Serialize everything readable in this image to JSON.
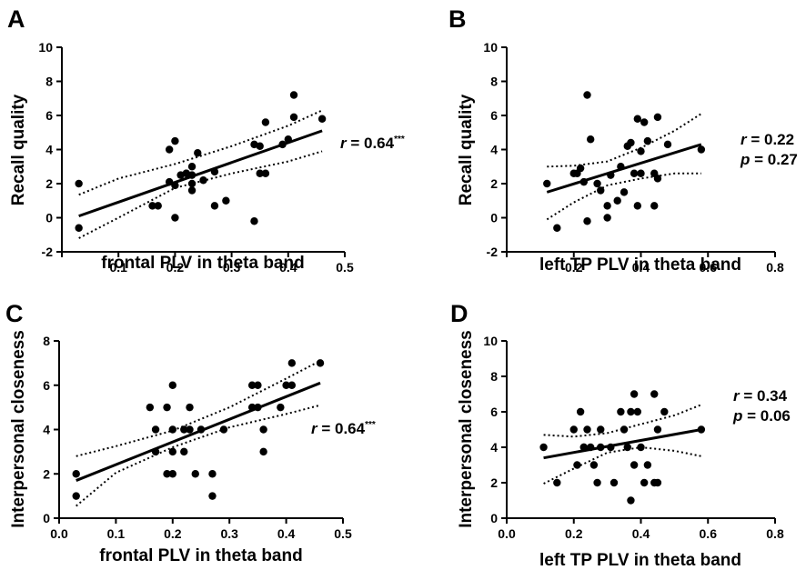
{
  "chart_data": [
    {
      "type": "scatter",
      "panel": "A",
      "xlabel": "frontal PLV in theta band",
      "ylabel": "Recall quality",
      "xlim": [
        0,
        0.5
      ],
      "ylim": [
        -2,
        10
      ],
      "xticks": [
        "",
        "0.1",
        "0.2",
        "0.3",
        "0.4",
        "0.5"
      ],
      "yticks": [
        "-2",
        "0",
        "2",
        "4",
        "6",
        "8",
        "10"
      ],
      "stat_r_label": "r",
      "stat_r_value": " = 0.64",
      "stat_sig": "***",
      "stat_p_label": "",
      "stat_p_value": "",
      "x": [
        0.03,
        0.03,
        0.16,
        0.17,
        0.19,
        0.19,
        0.2,
        0.2,
        0.2,
        0.21,
        0.22,
        0.22,
        0.23,
        0.23,
        0.23,
        0.23,
        0.24,
        0.25,
        0.27,
        0.27,
        0.29,
        0.34,
        0.34,
        0.35,
        0.35,
        0.36,
        0.36,
        0.39,
        0.4,
        0.41,
        0.41,
        0.46
      ],
      "y": [
        2.0,
        -0.6,
        0.7,
        0.7,
        2.1,
        4.0,
        0.0,
        1.9,
        4.5,
        2.5,
        2.6,
        2.6,
        2.0,
        2.5,
        3.0,
        1.6,
        3.8,
        2.2,
        2.7,
        0.7,
        1.0,
        -0.2,
        4.3,
        4.2,
        2.6,
        5.6,
        2.6,
        4.3,
        4.6,
        5.9,
        7.2,
        5.8
      ],
      "fit": {
        "x0": 0.03,
        "y0": 0.1,
        "x1": 0.46,
        "y1": 5.1
      },
      "ci_upper": [
        [
          0.03,
          1.35
        ],
        [
          0.1,
          2.3
        ],
        [
          0.2,
          3.15
        ],
        [
          0.3,
          4.2
        ],
        [
          0.4,
          5.4
        ],
        [
          0.46,
          6.3
        ]
      ],
      "ci_lower": [
        [
          0.03,
          -1.2
        ],
        [
          0.1,
          0.0
        ],
        [
          0.2,
          1.75
        ],
        [
          0.3,
          2.6
        ],
        [
          0.4,
          3.3
        ],
        [
          0.46,
          3.9
        ]
      ]
    },
    {
      "type": "scatter",
      "panel": "B",
      "xlabel": "left TP PLV in theta band",
      "ylabel": "Recall quality",
      "xlim": [
        0,
        0.8
      ],
      "ylim": [
        -2,
        10
      ],
      "xticks": [
        "",
        "0.2",
        "0.4",
        "0.6",
        "0.8"
      ],
      "yticks": [
        "-2",
        "0",
        "2",
        "4",
        "6",
        "8",
        "10"
      ],
      "stat_r_label": "r",
      "stat_r_value": " = 0.22",
      "stat_sig": "",
      "stat_p_label": "p",
      "stat_p_value": " = 0.27",
      "x": [
        0.12,
        0.15,
        0.2,
        0.21,
        0.22,
        0.23,
        0.24,
        0.24,
        0.25,
        0.27,
        0.28,
        0.3,
        0.3,
        0.31,
        0.33,
        0.34,
        0.35,
        0.36,
        0.37,
        0.38,
        0.39,
        0.39,
        0.4,
        0.4,
        0.41,
        0.42,
        0.44,
        0.44,
        0.45,
        0.45,
        0.48,
        0.58
      ],
      "y": [
        2.0,
        -0.6,
        2.6,
        2.6,
        2.9,
        2.1,
        -0.2,
        7.2,
        4.6,
        2.0,
        1.6,
        0.0,
        0.7,
        2.5,
        1.0,
        3.0,
        1.5,
        4.2,
        4.4,
        2.6,
        5.8,
        0.7,
        2.6,
        3.9,
        5.6,
        4.5,
        0.7,
        2.6,
        2.3,
        5.9,
        4.3,
        4.0
      ],
      "fit": {
        "x0": 0.12,
        "y0": 1.5,
        "x1": 0.58,
        "y1": 4.3
      },
      "ci_upper": [
        [
          0.12,
          3.0
        ],
        [
          0.2,
          3.05
        ],
        [
          0.3,
          3.3
        ],
        [
          0.4,
          4.1
        ],
        [
          0.5,
          5.1
        ],
        [
          0.58,
          6.1
        ]
      ],
      "ci_lower": [
        [
          0.12,
          -0.1
        ],
        [
          0.2,
          0.9
        ],
        [
          0.3,
          1.9
        ],
        [
          0.4,
          2.3
        ],
        [
          0.5,
          2.6
        ],
        [
          0.58,
          2.6
        ]
      ]
    },
    {
      "type": "scatter",
      "panel": "C",
      "xlabel": "frontal PLV in theta band",
      "ylabel": "Interpersonal closeness",
      "xlim": [
        0,
        0.5
      ],
      "ylim": [
        0,
        8
      ],
      "xticks": [
        "0.0",
        "0.1",
        "0.2",
        "0.3",
        "0.4",
        "0.5"
      ],
      "yticks": [
        "0",
        "2",
        "4",
        "6",
        "8"
      ],
      "stat_r_label": "r",
      "stat_r_value": " = 0.64",
      "stat_sig": "***",
      "stat_p_label": "",
      "stat_p_value": "",
      "x": [
        0.03,
        0.03,
        0.16,
        0.17,
        0.17,
        0.19,
        0.19,
        0.2,
        0.2,
        0.2,
        0.2,
        0.22,
        0.22,
        0.23,
        0.23,
        0.24,
        0.25,
        0.27,
        0.27,
        0.29,
        0.34,
        0.34,
        0.35,
        0.35,
        0.36,
        0.36,
        0.39,
        0.4,
        0.41,
        0.41,
        0.46
      ],
      "y": [
        2,
        1,
        5,
        4,
        3,
        5,
        2,
        6,
        4,
        3,
        2,
        3,
        4,
        5,
        4,
        2,
        4,
        2,
        1,
        4,
        5,
        6,
        5,
        6,
        3,
        4,
        5,
        6,
        6,
        7,
        7
      ],
      "fit": {
        "x0": 0.03,
        "y0": 1.7,
        "x1": 0.46,
        "y1": 6.1
      },
      "ci_upper": [
        [
          0.03,
          2.8
        ],
        [
          0.1,
          3.25
        ],
        [
          0.2,
          3.95
        ],
        [
          0.3,
          5.0
        ],
        [
          0.4,
          6.3
        ],
        [
          0.46,
          7.1
        ]
      ],
      "ci_lower": [
        [
          0.03,
          0.55
        ],
        [
          0.1,
          2.05
        ],
        [
          0.2,
          3.2
        ],
        [
          0.3,
          4.1
        ],
        [
          0.4,
          4.7
        ],
        [
          0.46,
          5.1
        ]
      ]
    },
    {
      "type": "scatter",
      "panel": "D",
      "xlabel": "left TP PLV in theta band",
      "ylabel": "Interpersonal closeness",
      "xlim": [
        0,
        0.8
      ],
      "ylim": [
        0,
        10
      ],
      "xticks": [
        "0.0",
        "0.2",
        "0.4",
        "0.6",
        "0.8"
      ],
      "yticks": [
        "0",
        "2",
        "4",
        "6",
        "8",
        "10"
      ],
      "stat_r_label": "r",
      "stat_r_value": " = 0.34",
      "stat_sig": "",
      "stat_p_label": "p",
      "stat_p_value": " = 0.06",
      "x": [
        0.11,
        0.15,
        0.2,
        0.21,
        0.22,
        0.23,
        0.23,
        0.24,
        0.25,
        0.26,
        0.27,
        0.28,
        0.28,
        0.31,
        0.32,
        0.34,
        0.35,
        0.36,
        0.37,
        0.37,
        0.38,
        0.38,
        0.39,
        0.4,
        0.41,
        0.42,
        0.44,
        0.44,
        0.45,
        0.45,
        0.47,
        0.58
      ],
      "y": [
        4,
        2,
        5,
        3,
        6,
        4,
        4,
        5,
        4,
        3,
        2,
        4,
        5,
        4,
        2,
        6,
        5,
        4,
        1,
        6,
        3,
        7,
        6,
        4,
        2,
        3,
        2,
        7,
        5,
        2,
        6,
        5
      ],
      "fit": {
        "x0": 0.11,
        "y0": 3.4,
        "x1": 0.58,
        "y1": 5.0
      },
      "ci_upper": [
        [
          0.11,
          4.7
        ],
        [
          0.2,
          4.6
        ],
        [
          0.3,
          4.8
        ],
        [
          0.4,
          5.3
        ],
        [
          0.5,
          5.8
        ],
        [
          0.58,
          6.4
        ]
      ],
      "ci_lower": [
        [
          0.11,
          1.95
        ],
        [
          0.2,
          2.8
        ],
        [
          0.3,
          3.7
        ],
        [
          0.4,
          4.0
        ],
        [
          0.5,
          3.8
        ],
        [
          0.58,
          3.5
        ]
      ]
    }
  ]
}
